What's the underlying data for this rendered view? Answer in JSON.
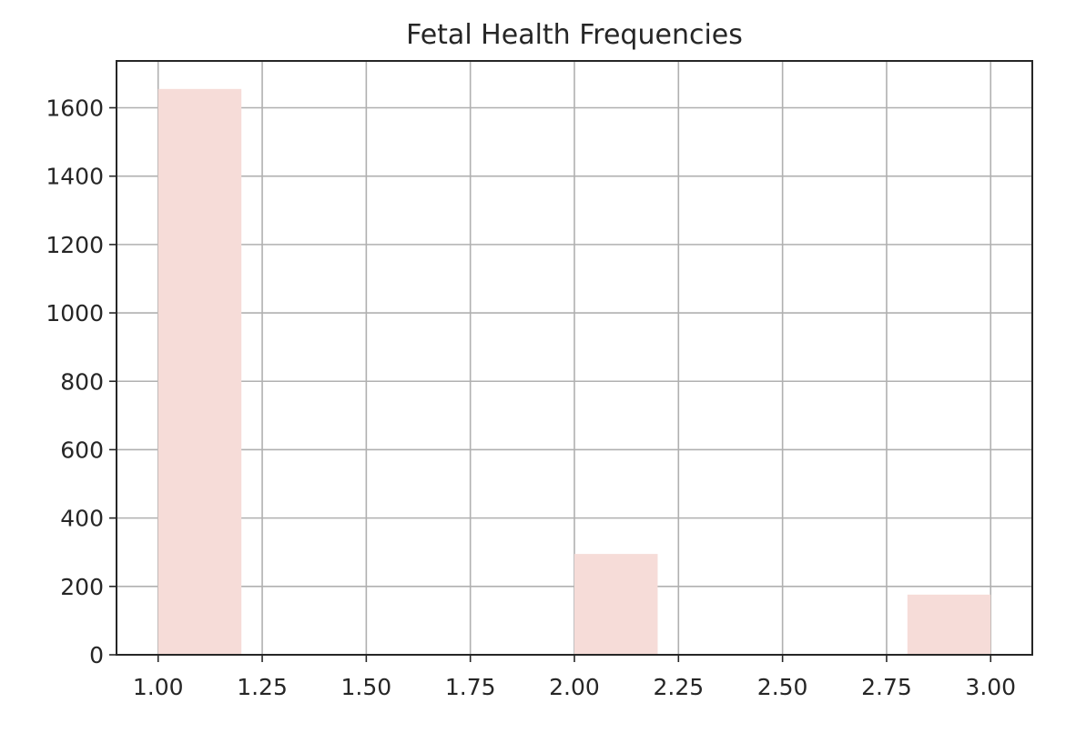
{
  "chart_data": {
    "type": "histogram",
    "title": "Fetal Health Frequencies",
    "xlabel": "",
    "ylabel": "",
    "xlim": [
      0.9,
      3.1
    ],
    "ylim": [
      0,
      1737
    ],
    "x_ticks": [
      "1.00",
      "1.25",
      "1.50",
      "1.75",
      "2.00",
      "2.25",
      "2.50",
      "2.75",
      "3.00"
    ],
    "y_ticks": [
      "0",
      "200",
      "400",
      "600",
      "800",
      "1000",
      "1200",
      "1400",
      "1600"
    ],
    "bins": [
      {
        "start": 1.0,
        "end": 1.2,
        "count": 1655
      },
      {
        "start": 2.0,
        "end": 2.2,
        "count": 295
      },
      {
        "start": 2.8,
        "end": 3.0,
        "count": 176
      }
    ],
    "grid": true,
    "bar_color": "#f6dcd8"
  }
}
